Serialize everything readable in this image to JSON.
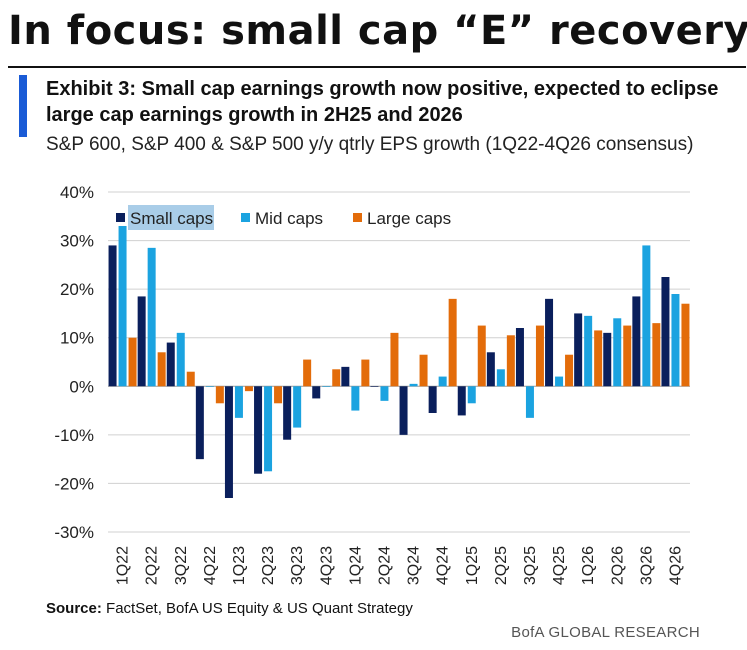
{
  "header": {
    "title": "In focus: small cap “E” recovery",
    "exhibit": "Exhibit 3: Small cap earnings growth now positive, expected to eclipse large cap earnings growth in 2H25 and 2026",
    "subtitle": "S&P 600, S&P 400 & S&P 500 y/y qtrly EPS growth (1Q22-4Q26 consensus)"
  },
  "footer": {
    "source_label": "Source:",
    "source_text": " FactSet, BofA US Equity & US Quant Strategy",
    "brand": "BofA GLOBAL RESEARCH"
  },
  "colors": {
    "accent": "#1a5bd6",
    "small": "#0a1f5c",
    "mid": "#1ba3e0",
    "large": "#e36c0a",
    "legend_highlight": "#a9cde8",
    "grid": "#d0d0d0"
  },
  "chart_data": {
    "type": "bar",
    "title": "S&P 600, S&P 400 & S&P 500 y/y qtrly EPS growth (1Q22-4Q26 consensus)",
    "xlabel": "",
    "ylabel": "",
    "ylim": [
      -30,
      40
    ],
    "yticks": [
      -30,
      -20,
      -10,
      0,
      10,
      20,
      30,
      40
    ],
    "ytick_labels": [
      "-30%",
      "-20%",
      "-10%",
      "0%",
      "10%",
      "20%",
      "30%",
      "40%"
    ],
    "grid": true,
    "legend_position": "top-left",
    "categories": [
      "1Q22",
      "2Q22",
      "3Q22",
      "4Q22",
      "1Q23",
      "2Q23",
      "3Q23",
      "4Q23",
      "1Q24",
      "2Q24",
      "3Q24",
      "4Q24",
      "1Q25",
      "2Q25",
      "3Q25",
      "4Q25",
      "1Q26",
      "2Q26",
      "3Q26",
      "4Q26"
    ],
    "series": [
      {
        "name": "Small caps",
        "values": [
          29,
          18.5,
          9,
          -15,
          -23,
          -18,
          -11,
          -2.5,
          4,
          0,
          -10,
          -5.5,
          -6,
          7,
          12,
          18,
          15,
          11,
          18.5,
          22.5
        ]
      },
      {
        "name": "Mid caps",
        "values": [
          33,
          28.5,
          11,
          0,
          -6.5,
          -17.5,
          -8.5,
          0,
          -5,
          -3,
          0.5,
          2,
          -3.5,
          3.5,
          -6.5,
          2,
          14.5,
          14,
          29,
          19
        ]
      },
      {
        "name": "Large caps",
        "values": [
          10,
          7,
          3,
          -3.5,
          -1,
          -3.5,
          5.5,
          3.5,
          5.5,
          11,
          6.5,
          18,
          12.5,
          10.5,
          12.5,
          6.5,
          11.5,
          12.5,
          13,
          17
        ]
      }
    ]
  }
}
